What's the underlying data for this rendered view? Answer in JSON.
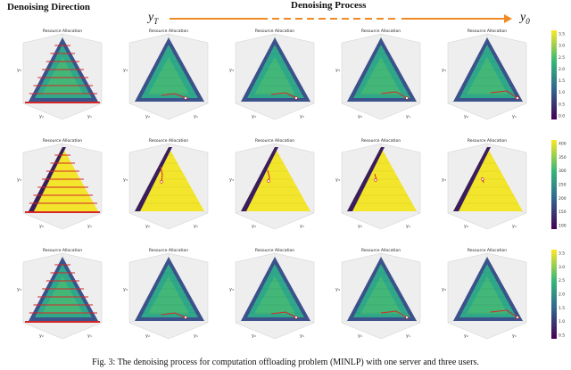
{
  "header": {
    "left_title": "Denoising Direction",
    "right_title": "Denoising Process",
    "y_start": "y",
    "y_start_sub": "T",
    "y_end": "y",
    "y_end_sub": "0"
  },
  "panel_title": "Resource Allocation",
  "axis_labels": {
    "x": "y₁",
    "y": "y₂",
    "z": "y₃"
  },
  "rows": [
    {
      "colorbar_ticks": [
        "3.5",
        "3.0",
        "2.5",
        "2.0",
        "1.5",
        "1.0",
        "0.5",
        "0.0"
      ],
      "style": "green"
    },
    {
      "colorbar_ticks": [
        "400",
        "350",
        "300",
        "250",
        "200",
        "150",
        "100"
      ],
      "style": "yellow"
    },
    {
      "colorbar_ticks": [
        "3.5",
        "3.0",
        "2.5",
        "2.0",
        "1.5",
        "1.0",
        "0.5"
      ],
      "style": "green"
    }
  ],
  "caption": "Fig. 3: The denoising process for computation offloading problem (MINLP) with one server and three users."
}
